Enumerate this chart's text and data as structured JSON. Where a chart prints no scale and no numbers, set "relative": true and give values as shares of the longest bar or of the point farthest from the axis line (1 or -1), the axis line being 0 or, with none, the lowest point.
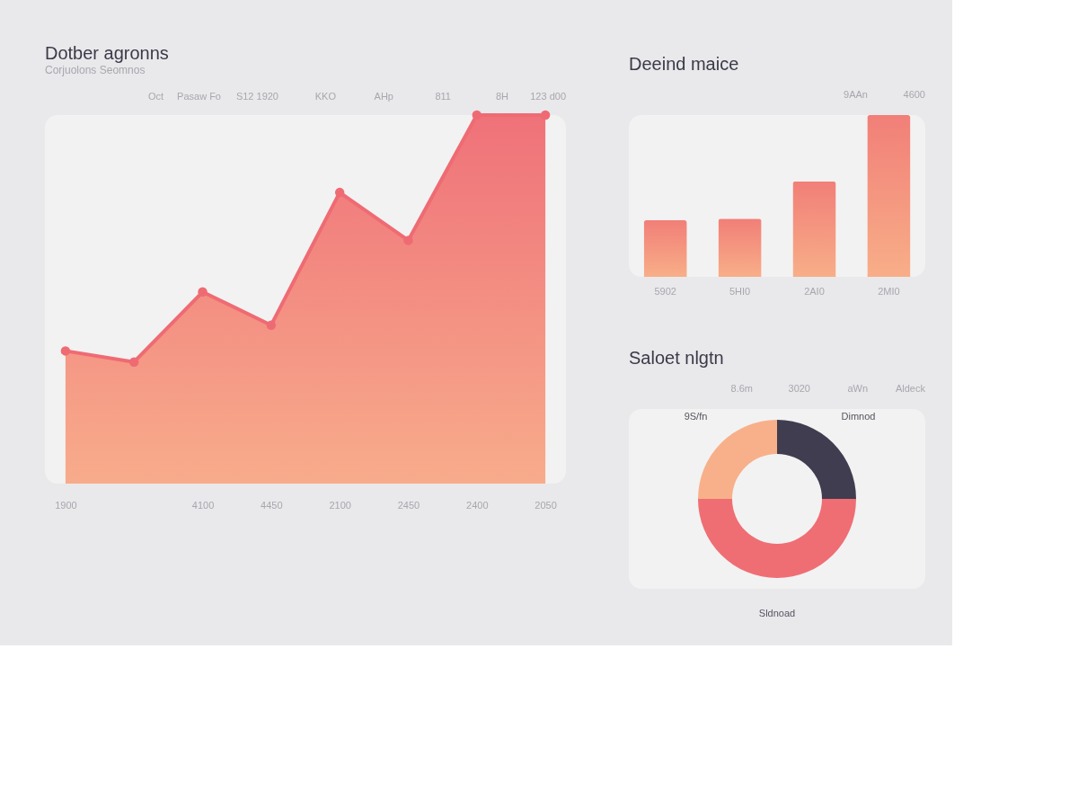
{
  "chart_data": [
    {
      "type": "area",
      "title": "Dotber agronns",
      "subtitle": "Corjuolons Seomnos",
      "relative": true,
      "marker": "circle",
      "categories": [
        "1900",
        null,
        "4100",
        "4450",
        "2100",
        "2450",
        "2400",
        "2050"
      ],
      "series": [
        {
          "color": "#ef6b73",
          "values": [
            0.36,
            0.33,
            0.52,
            0.43,
            0.79,
            0.66,
            1.0,
            1.0
          ]
        }
      ],
      "annotations": [
        "Oct",
        "Pasaw Fo",
        "S12 1920",
        "KKO",
        "AHp",
        "811",
        "8H",
        "123 d00"
      ]
    },
    {
      "type": "bar",
      "title": "Deeind maice",
      "relative": true,
      "categories": [
        "5902",
        "5HI0",
        "2AI0",
        "2MI0"
      ],
      "series": [
        {
          "color": "#f17f78",
          "values": [
            0.35,
            0.36,
            0.59,
            1.0
          ]
        }
      ],
      "annotations": [
        "9AAn",
        "4600"
      ]
    },
    {
      "type": "donut",
      "title": "Saloet nlgtn",
      "categories": [
        "Dimnod",
        "Sldnoad",
        "9S/fn"
      ],
      "values": [
        25,
        50,
        25
      ],
      "colors": [
        "#3f3d4f",
        "#ef6e74",
        "#f8b08a"
      ],
      "annotations": [
        "8.6m",
        "3020",
        "aWn",
        "Aldeck"
      ]
    }
  ]
}
